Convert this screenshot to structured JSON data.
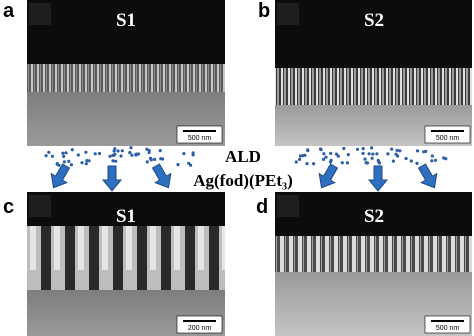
{
  "panels": [
    {
      "letter": "a",
      "sample": "S1",
      "scale_bar": "500 nm"
    },
    {
      "letter": "b",
      "sample": "S2",
      "scale_bar": "500 nm"
    },
    {
      "letter": "c",
      "sample": "S1",
      "scale_bar": "200 nm"
    },
    {
      "letter": "d",
      "sample": "S2",
      "scale_bar": "500 nm"
    }
  ],
  "process": {
    "method": "ALD",
    "precursor": "Ag(fod)(PEt₃)"
  }
}
